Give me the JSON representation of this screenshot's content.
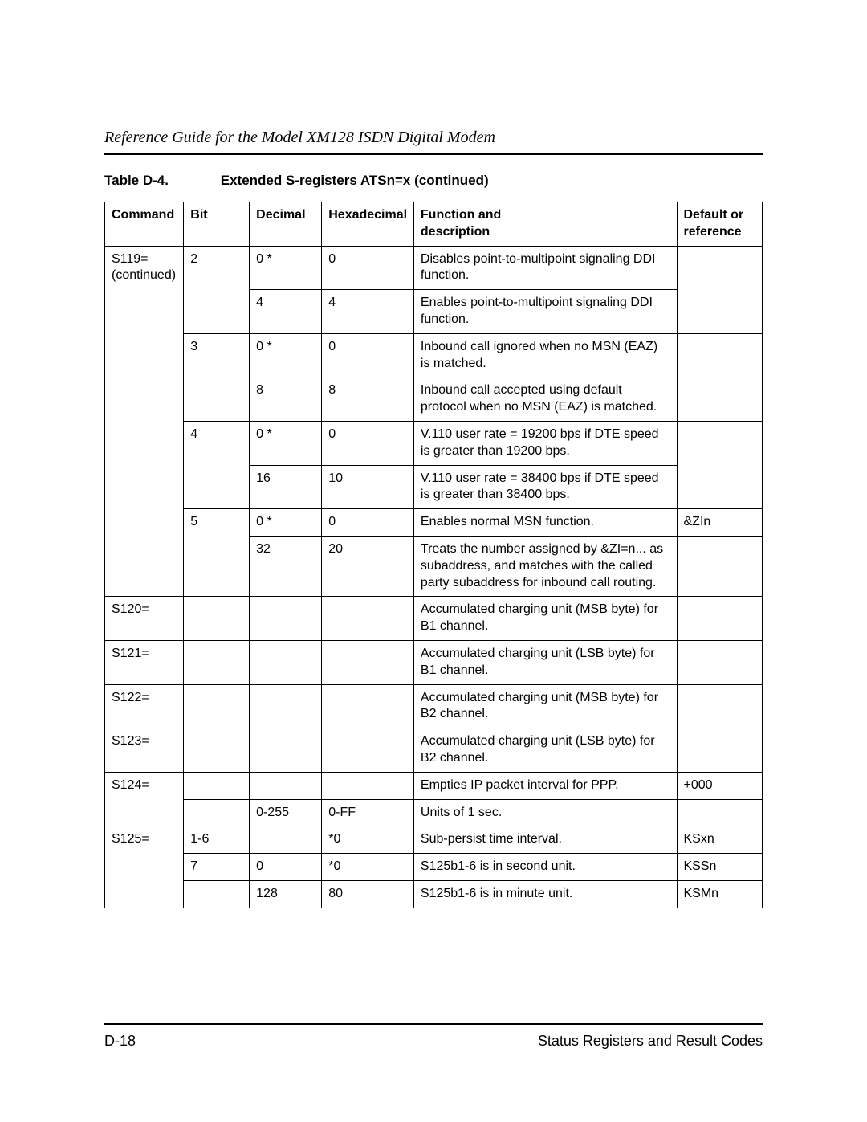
{
  "header": {
    "doc_title": "Reference Guide for the Model XM128 ISDN Digital Modem"
  },
  "caption": {
    "label": "Table D-4.",
    "title": "Extended S-registers ATSn=x (continued)"
  },
  "table": {
    "columns": {
      "command": "Command",
      "bit": "Bit",
      "decimal": "Decimal",
      "hex": "Hexadecimal",
      "desc_l1": "Function and",
      "desc_l2": "description",
      "ref_l1": "Default or",
      "ref_l2": "reference"
    },
    "rows": [
      {
        "cmd_l1": "S119=",
        "cmd_l2": "(continued)",
        "bit": "2",
        "dec": "0 *",
        "hex": "0",
        "desc": "Disables point-to-multipoint signaling DDI function.",
        "ref": ""
      },
      {
        "cmd": "",
        "bit": "",
        "dec": "4",
        "hex": "4",
        "desc": "Enables point-to-multipoint signaling DDI function.",
        "ref": ""
      },
      {
        "cmd": "",
        "bit": "3",
        "dec": "0 *",
        "hex": "0",
        "desc": "Inbound call ignored when no MSN (EAZ) is matched.",
        "ref": ""
      },
      {
        "cmd": "",
        "bit": "",
        "dec": "8",
        "hex": "8",
        "desc": "Inbound call accepted using default protocol when no MSN (EAZ) is matched.",
        "ref": ""
      },
      {
        "cmd": "",
        "bit": "4",
        "dec": "0 *",
        "hex": "0",
        "desc": "V.110 user rate = 19200 bps if DTE speed is greater than 19200 bps.",
        "ref": ""
      },
      {
        "cmd": "",
        "bit": "",
        "dec": "16",
        "hex": "10",
        "desc": "V.110 user rate = 38400 bps if DTE speed is greater than 38400 bps.",
        "ref": ""
      },
      {
        "cmd": "",
        "bit": "5",
        "dec": "0 *",
        "hex": "0",
        "desc": "Enables normal MSN function.",
        "ref": "&ZIn"
      },
      {
        "cmd": "",
        "bit": "",
        "dec": "32",
        "hex": "20",
        "desc": "Treats the number assigned by &ZI=n... as subaddress, and matches with the called party subaddress for inbound call routing.",
        "ref": ""
      },
      {
        "cmd": "S120=",
        "bit": "",
        "dec": "",
        "hex": "",
        "desc": "Accumulated charging unit (MSB byte) for B1 channel.",
        "ref": ""
      },
      {
        "cmd": "S121=",
        "bit": "",
        "dec": "",
        "hex": "",
        "desc": "Accumulated charging unit (LSB byte) for B1 channel.",
        "ref": ""
      },
      {
        "cmd": "S122=",
        "bit": "",
        "dec": "",
        "hex": "",
        "desc": "Accumulated charging unit (MSB byte) for B2 channel.",
        "ref": ""
      },
      {
        "cmd": "S123=",
        "bit": "",
        "dec": "",
        "hex": "",
        "desc": "Accumulated charging unit (LSB byte) for B2 channel.",
        "ref": ""
      },
      {
        "cmd": "S124=",
        "bit": "",
        "dec": "",
        "hex": "",
        "desc": "Empties IP packet interval for PPP.",
        "ref": "+000"
      },
      {
        "cmd": "",
        "bit": "",
        "dec": "0-255",
        "hex": "0-FF",
        "desc": "Units of 1 sec.",
        "ref": ""
      },
      {
        "cmd": "S125=",
        "bit": "1-6",
        "dec": "",
        "hex": "*0",
        "desc": "Sub-persist time interval.",
        "ref": "KSxn"
      },
      {
        "cmd": "",
        "bit": "7",
        "dec": "0",
        "hex": "*0",
        "desc": "S125b1-6 is in second unit.",
        "ref": "KSSn"
      },
      {
        "cmd": "",
        "bit": "",
        "dec": "128",
        "hex": "80",
        "desc": "S125b1-6 is in minute unit.",
        "ref": "KSMn"
      }
    ]
  },
  "footer": {
    "page": "D-18",
    "section": "Status Registers and Result Codes"
  }
}
